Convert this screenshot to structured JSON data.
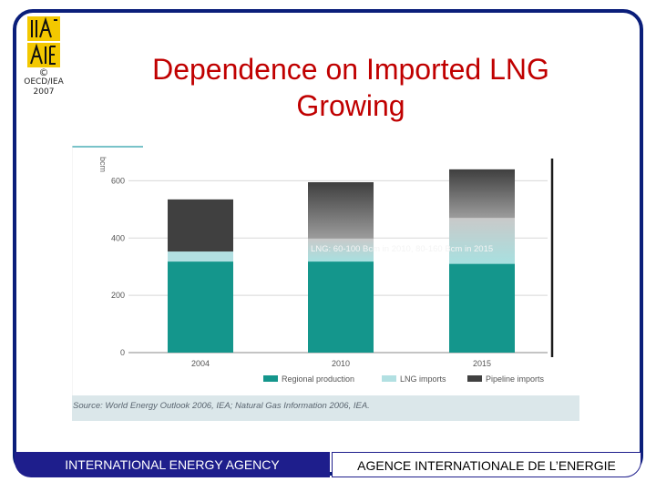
{
  "logo": {
    "icon": "iea-aie-logo"
  },
  "copyright": {
    "symbol": "©",
    "line1": "OECD/IEA",
    "line2": "2007"
  },
  "slide": {
    "title_line1": "Dependence on Imported LNG",
    "title_line2": "Growing"
  },
  "chart_data": {
    "type": "bar",
    "stacked": true,
    "ylabel": "bcm",
    "ylim": [
      0,
      700
    ],
    "yticks": [
      0,
      200,
      400,
      600
    ],
    "categories": [
      "2004",
      "2010",
      "2015"
    ],
    "series": [
      {
        "name": "Regional production",
        "color": "#14968c",
        "values": [
          318,
          318,
          310
        ]
      },
      {
        "name": "LNG imports",
        "color": "#b2e0e2",
        "values": [
          35,
          80,
          160
        ]
      },
      {
        "name": "Pipeline imports",
        "color": "#404040",
        "values": [
          182,
          197,
          170
        ]
      }
    ],
    "annotation": "LNG: 60-100 Bcm in 2010, 80-160 Bcm in 2015",
    "grid": true,
    "legend_position": "bottom"
  },
  "source": "Source: World Energy Outlook 2006, IEA; Natural Gas Information 2006, IEA.",
  "footer": {
    "left": "INTERNATIONAL ENERGY AGENCY",
    "right": "AGENCE INTERNATIONALE DE L’ENERGIE"
  }
}
